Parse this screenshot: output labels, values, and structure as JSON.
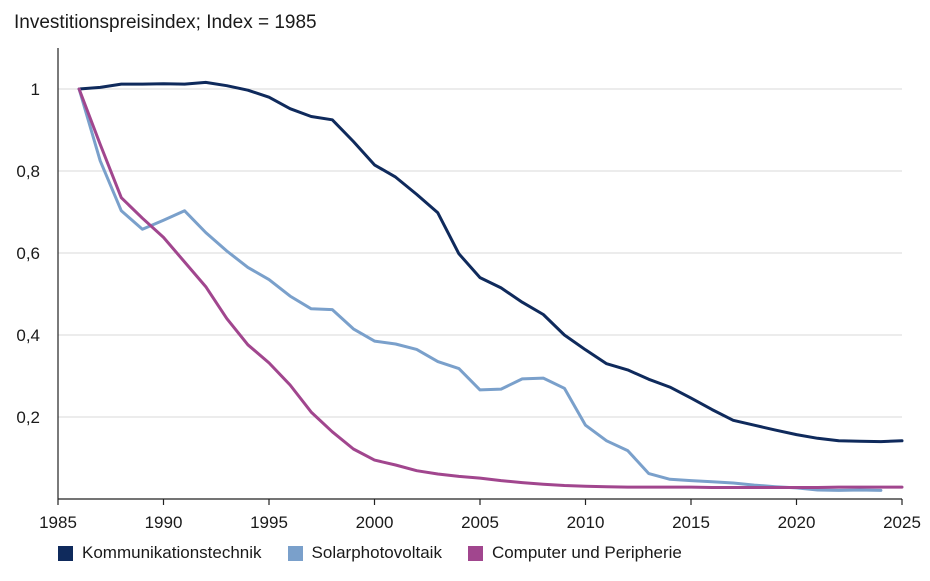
{
  "chart_data": {
    "type": "line",
    "title": "Investitionspreisindex; Index = 1985",
    "xlabel": "",
    "ylabel": "",
    "xlim": [
      1985,
      2025
    ],
    "ylim": [
      0,
      1.1
    ],
    "x_ticks": [
      "1985",
      "1990",
      "1995",
      "2000",
      "2005",
      "2010",
      "2015",
      "2020",
      "2025"
    ],
    "y_ticks": [
      {
        "value": 0.2,
        "label": "0,2"
      },
      {
        "value": 0.4,
        "label": "0,4"
      },
      {
        "value": 0.6,
        "label": "0,6"
      },
      {
        "value": 0.8,
        "label": "0,8"
      },
      {
        "value": 1.0,
        "label": "1"
      }
    ],
    "grid": "horizontal",
    "legend": "bottom",
    "series": [
      {
        "name": "Kommunikationstechnik",
        "color": "#0f2a5c",
        "x": [
          1986,
          1987,
          1988,
          1989,
          1990,
          1991,
          1992,
          1993,
          1994,
          1995,
          1996,
          1997,
          1998,
          1999,
          2000,
          2001,
          2002,
          2003,
          2004,
          2005,
          2006,
          2007,
          2008,
          2009,
          2010,
          2011,
          2012,
          2013,
          2014,
          2015,
          2016,
          2017,
          2018,
          2019,
          2020,
          2021,
          2022,
          2023,
          2024,
          2025
        ],
        "values": [
          1.0,
          1.004,
          1.012,
          1.012,
          1.013,
          1.012,
          1.016,
          1.008,
          0.997,
          0.98,
          0.952,
          0.933,
          0.925,
          0.872,
          0.815,
          0.785,
          0.743,
          0.698,
          0.598,
          0.54,
          0.515,
          0.48,
          0.45,
          0.4,
          0.364,
          0.33,
          0.315,
          0.292,
          0.273,
          0.246,
          0.218,
          0.192,
          0.18,
          0.168,
          0.157,
          0.148,
          0.142,
          0.141,
          0.14,
          0.142
        ]
      },
      {
        "name": "Solarphotovoltaik",
        "color": "#7aa0cb",
        "x": [
          1986,
          1987,
          1988,
          1989,
          1990,
          1991,
          1992,
          1993,
          1994,
          1995,
          1996,
          1997,
          1998,
          1999,
          2000,
          2001,
          2002,
          2003,
          2004,
          2005,
          2006,
          2007,
          2008,
          2009,
          2010,
          2011,
          2012,
          2013,
          2014,
          2015,
          2016,
          2017,
          2018,
          2019,
          2020,
          2021,
          2022,
          2023,
          2024
        ],
        "values": [
          1.0,
          0.825,
          0.703,
          0.658,
          0.68,
          0.703,
          0.65,
          0.605,
          0.565,
          0.535,
          0.495,
          0.464,
          0.462,
          0.415,
          0.385,
          0.378,
          0.365,
          0.335,
          0.318,
          0.266,
          0.268,
          0.293,
          0.295,
          0.27,
          0.18,
          0.142,
          0.118,
          0.062,
          0.048,
          0.045,
          0.042,
          0.039,
          0.034,
          0.03,
          0.027,
          0.022,
          0.021,
          0.022,
          0.021
        ]
      },
      {
        "name": "Computer und Peripherie",
        "color": "#a1468e",
        "x": [
          1986,
          1987,
          1988,
          1989,
          1990,
          1991,
          1992,
          1993,
          1994,
          1995,
          1996,
          1997,
          1998,
          1999,
          2000,
          2001,
          2002,
          2003,
          2004,
          2005,
          2006,
          2007,
          2008,
          2009,
          2010,
          2011,
          2012,
          2013,
          2014,
          2015,
          2016,
          2017,
          2018,
          2019,
          2020,
          2021,
          2022,
          2023,
          2024,
          2025
        ],
        "values": [
          1.0,
          0.865,
          0.735,
          0.685,
          0.638,
          0.578,
          0.518,
          0.44,
          0.376,
          0.332,
          0.278,
          0.212,
          0.164,
          0.122,
          0.095,
          0.083,
          0.069,
          0.061,
          0.055,
          0.051,
          0.045,
          0.04,
          0.036,
          0.033,
          0.031,
          0.03,
          0.029,
          0.029,
          0.029,
          0.029,
          0.028,
          0.028,
          0.028,
          0.028,
          0.028,
          0.028,
          0.029,
          0.029,
          0.029,
          0.029
        ]
      }
    ]
  }
}
